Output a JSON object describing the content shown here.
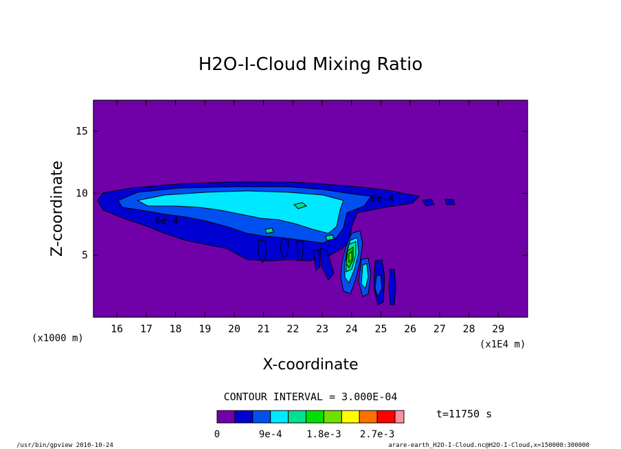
{
  "chart_data": {
    "type": "contour",
    "title": "H2O-I-Cloud Mixing Ratio",
    "xlabel": "X-coordinate",
    "ylabel": "Z-coordinate",
    "x_unit_left": "(x1000 m)",
    "x_unit_right": "(x1E4 m)",
    "xlim": [
      15.2,
      30.0
    ],
    "ylim": [
      0.0,
      17.5
    ],
    "xticks": [
      16,
      17,
      18,
      19,
      20,
      21,
      22,
      23,
      24,
      25,
      26,
      27,
      28,
      29
    ],
    "yticks": [
      5,
      10,
      15
    ],
    "contour_interval_text": "CONTOUR INTERVAL = 3.000E-04",
    "time_text": "t=11750 s",
    "contour_labels": [
      "6e-4",
      "6e-4"
    ],
    "colorbar": {
      "levels": [
        0,
        0.0003,
        0.0006,
        0.0009,
        0.0012,
        0.0015,
        0.0018,
        0.0021,
        0.0024,
        0.0027,
        0.003,
        0.0033
      ],
      "colors": [
        "#7000a8",
        "#0000d0",
        "#0050f0",
        "#00e8ff",
        "#00e090",
        "#00e000",
        "#70e000",
        "#ffff00",
        "#ff7000",
        "#ff0000",
        "#ff90a0"
      ],
      "tick_labels": [
        "0",
        "9e-4",
        "1.8e-3",
        "2.7e-3"
      ]
    }
  },
  "footer": {
    "left": "/usr/bin/gpview  2010-10-24",
    "right": "arare-earth_H2O-I-Cloud.nc@H2O-I-Cloud,x=150000:300000"
  }
}
